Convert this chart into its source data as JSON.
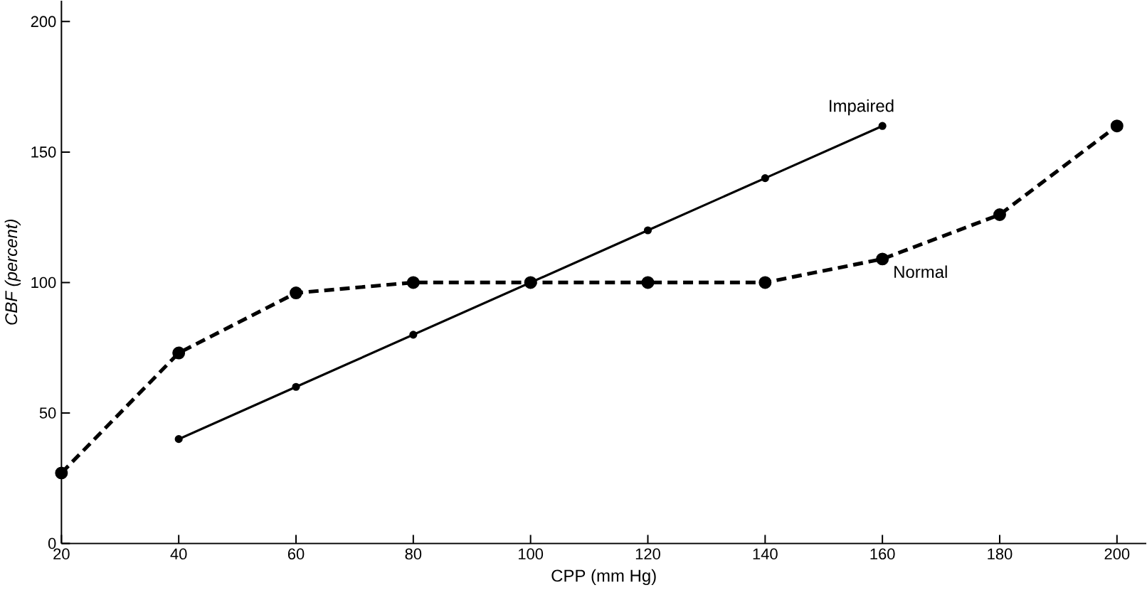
{
  "chart_data": {
    "type": "line",
    "xlabel": "CPP (mm Hg)",
    "ylabel": "*CBF (percent)*",
    "xlim": [
      20,
      205
    ],
    "ylim": [
      0,
      208
    ],
    "xticks": [
      20,
      40,
      60,
      80,
      100,
      120,
      140,
      160,
      180,
      200
    ],
    "yticks": [
      0,
      50,
      100,
      150,
      200
    ],
    "grid": false,
    "legend": false,
    "marker": "circle",
    "series": [
      {
        "name": "Impaired",
        "color": "#000000",
        "line_style": "solid",
        "x": [
          40,
          60,
          80,
          100,
          120,
          140,
          160
        ],
        "values": [
          40,
          60,
          80,
          100,
          120,
          140,
          160
        ]
      },
      {
        "name": "Normal",
        "color": "#000000",
        "line_style": "dashed",
        "x": [
          20,
          40,
          60,
          80,
          100,
          120,
          140,
          160,
          180,
          200
        ],
        "values": [
          27,
          73,
          96,
          100,
          100,
          100,
          100,
          109,
          126,
          160
        ]
      }
    ]
  }
}
